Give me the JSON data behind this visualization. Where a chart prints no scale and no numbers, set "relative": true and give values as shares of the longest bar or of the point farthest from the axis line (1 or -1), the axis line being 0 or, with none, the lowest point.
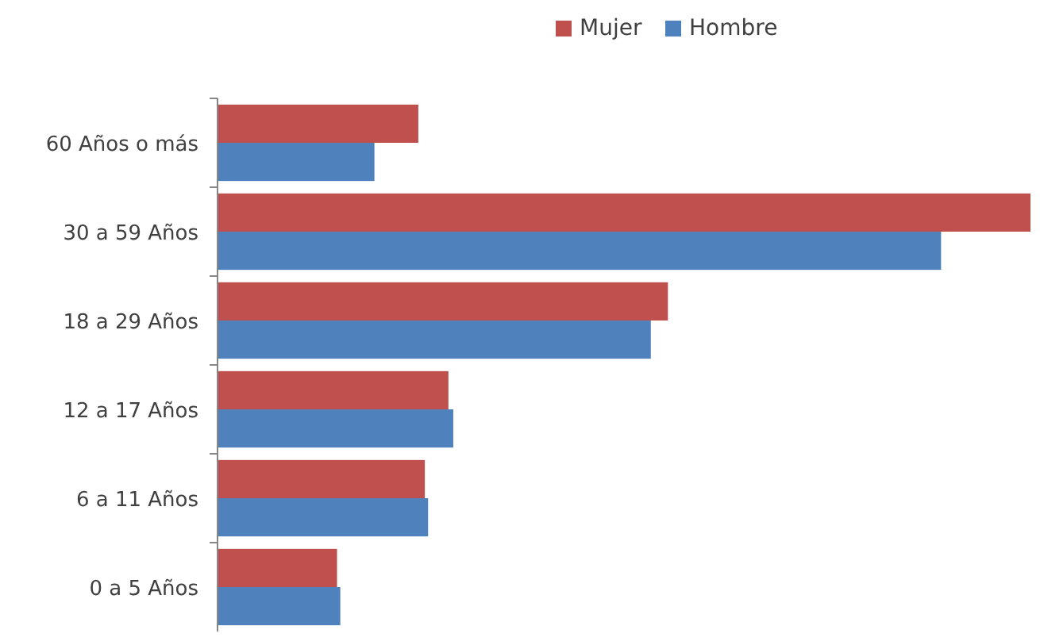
{
  "chart_data": {
    "type": "bar",
    "orientation": "horizontal",
    "relative": true,
    "legend": "top",
    "categories": [
      "60 Años o más",
      "30 a 59 Años",
      "18 a 29 Años",
      "12 a 17 Años",
      "6 a 11 Años",
      "0 a 5 Años"
    ],
    "series": [
      {
        "name": "Mujer",
        "color": "#c0504d",
        "values": [
          0.247,
          1,
          0.554,
          0.284,
          0.255,
          0.147
        ]
      },
      {
        "name": "Hombre",
        "color": "#4f81bd",
        "values": [
          0.193,
          0.89,
          0.533,
          0.29,
          0.259,
          0.151
        ]
      }
    ]
  }
}
